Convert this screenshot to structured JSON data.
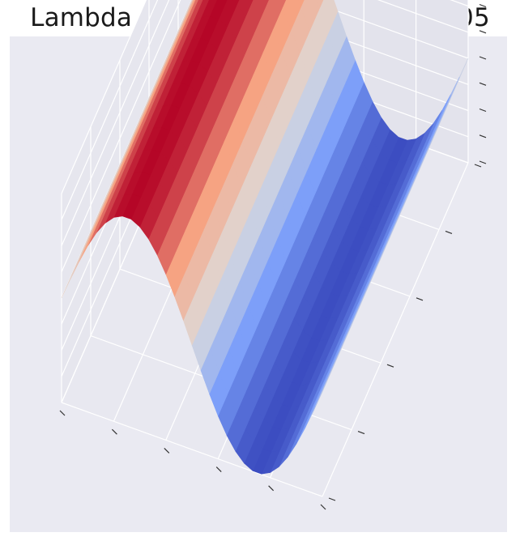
{
  "chart_data": {
    "type": "surface3d",
    "title": "Lambda = 0.0001 and eta = 0.0005",
    "xlabel": "",
    "ylabel": "",
    "zlabel": "",
    "tick_labels_shown": false,
    "grid": true,
    "colormap": "coolwarm",
    "x_range": [
      0,
      1
    ],
    "y_range": [
      0,
      1
    ],
    "z_range": [
      -1,
      1
    ],
    "surface": {
      "x_samples": 31,
      "y_samples": 16,
      "function": "z = sin(2*pi*x) profile, extruded along y"
    },
    "colors": {
      "background": "#eaeaf2",
      "pane_back": "#e3e3ec",
      "pane_side": "#e6e6ee",
      "pane_floor": "#e8e8f0",
      "grid": "#ffffff",
      "tick": "#333333",
      "title": "#1a1a1a"
    }
  }
}
